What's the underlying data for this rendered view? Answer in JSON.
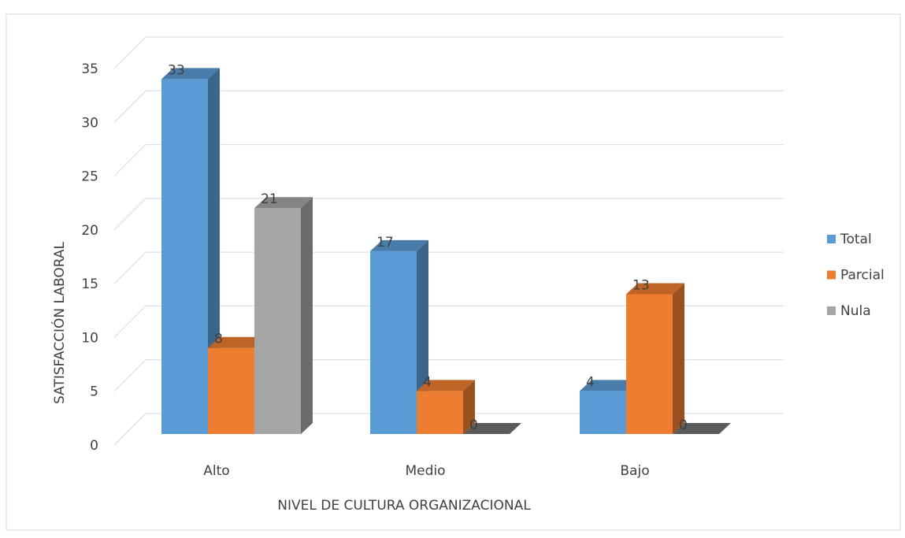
{
  "chart_data": {
    "type": "bar3d",
    "xlabel": "NIVEL DE CULTURA ORGANIZACIONAL",
    "ylabel": "SATISFACCIÓN LABORAL",
    "categories": [
      "Alto",
      "Medio",
      "Bajo"
    ],
    "series": [
      {
        "name": "Total",
        "color": "#5b9bd5",
        "values": [
          33,
          17,
          4
        ]
      },
      {
        "name": "Parcial",
        "color": "#ed7d31",
        "values": [
          8,
          4,
          13
        ]
      },
      {
        "name": "Nula",
        "color": "#a5a5a5",
        "values": [
          21,
          0,
          0
        ]
      }
    ],
    "ylim": [
      0,
      35
    ],
    "yticks": [
      0,
      5,
      10,
      15,
      20,
      25,
      30,
      35
    ],
    "grid": true,
    "legend": "right"
  }
}
